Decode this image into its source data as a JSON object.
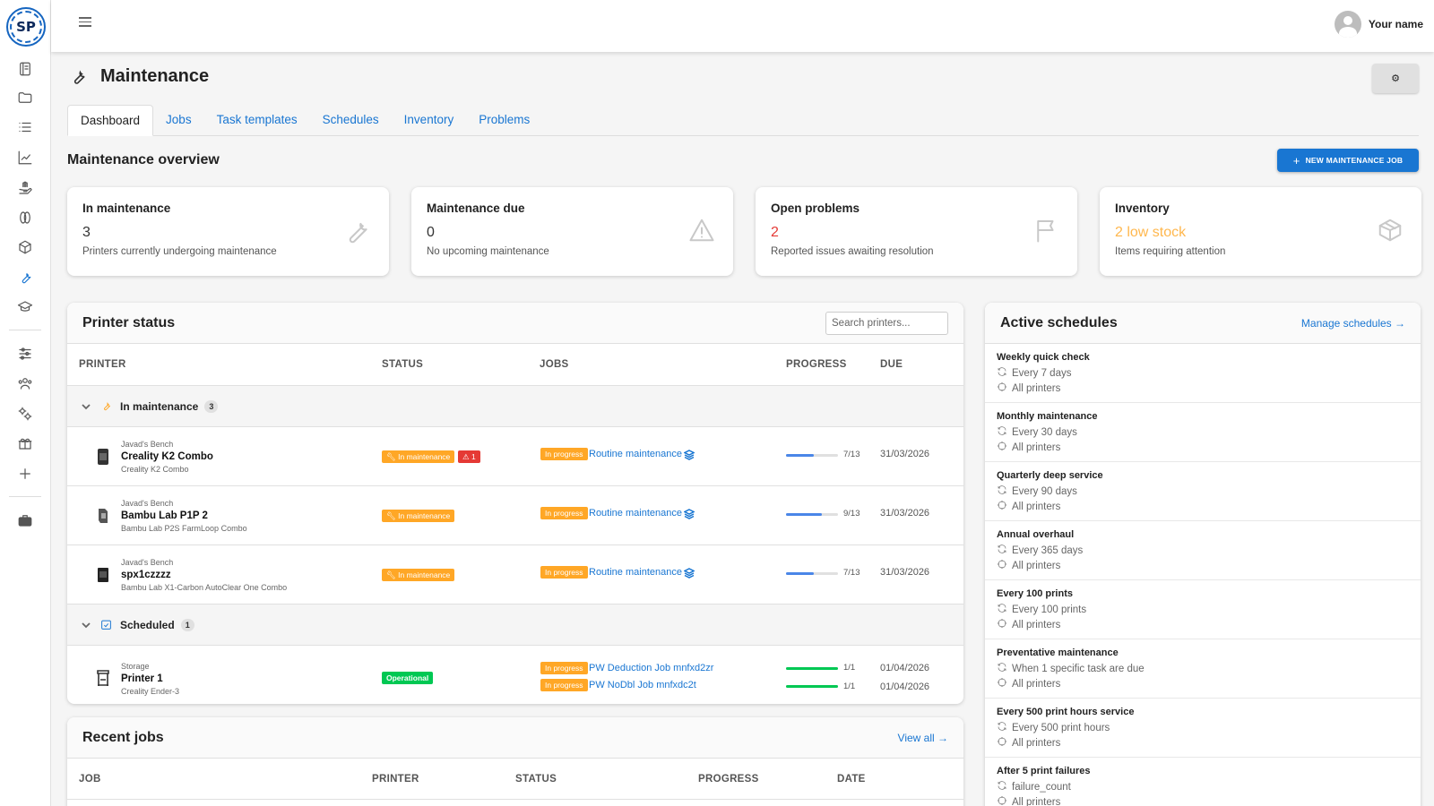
{
  "app": {
    "logo_text": "SP"
  },
  "topbar": {
    "username": "Your name"
  },
  "page": {
    "title": "Maintenance",
    "settings_icon": "gear-icon"
  },
  "tabs": [
    {
      "label": "Dashboard",
      "active": true
    },
    {
      "label": "Jobs"
    },
    {
      "label": "Task templates"
    },
    {
      "label": "Schedules"
    },
    {
      "label": "Inventory"
    },
    {
      "label": "Problems"
    }
  ],
  "overview": {
    "title": "Maintenance overview",
    "new_job_label": "NEW MAINTENANCE JOB",
    "cards": [
      {
        "title": "In maintenance",
        "value": "3",
        "sub": "Printers currently undergoing maintenance",
        "icon": "wrench-icon",
        "color": "#333333"
      },
      {
        "title": "Maintenance due",
        "value": "0",
        "sub": "No upcoming maintenance",
        "icon": "warning-icon",
        "color": "#333333"
      },
      {
        "title": "Open problems",
        "value": "2",
        "sub": "Reported issues awaiting resolution",
        "icon": "flag-icon",
        "color": "#e53935"
      },
      {
        "title": "Inventory",
        "value": "2 low stock",
        "sub": "Items requiring attention",
        "icon": "box-icon",
        "color": "#ffb74d"
      }
    ]
  },
  "printer_status": {
    "title": "Printer status",
    "search_placeholder": "Search printers...",
    "columns": [
      "PRINTER",
      "STATUS",
      "JOBS",
      "PROGRESS",
      "DUE"
    ],
    "groups": [
      {
        "label": "In maintenance",
        "count": "3",
        "icon": "wrench-icon"
      },
      {
        "label": "Scheduled",
        "count": "1",
        "icon": "calendar-check-icon"
      }
    ],
    "rows": [
      {
        "location": "Javad's Bench",
        "name": "Creality K2 Combo",
        "model": "Creality K2 Combo",
        "status": "In maintenance",
        "alert_count": "1",
        "job_status": "In progress",
        "job": "Routine maintenance",
        "progress": "7/13",
        "progress_value": 0.54,
        "due": "31/03/2026"
      },
      {
        "location": "Javad's Bench",
        "name": "Bambu Lab P1P 2",
        "model": "Bambu Lab P2S FarmLoop Combo",
        "status": "In maintenance",
        "job_status": "In progress",
        "job": "Routine maintenance",
        "progress": "9/13",
        "progress_value": 0.69,
        "due": "31/03/2026"
      },
      {
        "location": "Javad's Bench",
        "name": "spx1czzzz",
        "model": "Bambu Lab X1-Carbon AutoClear One Combo",
        "status": "In maintenance",
        "job_status": "In progress",
        "job": "Routine maintenance",
        "progress": "7/13",
        "progress_value": 0.54,
        "due": "31/03/2026"
      },
      {
        "location": "Storage",
        "name": "Printer 1",
        "model": "Creality Ender-3",
        "status": "Operational",
        "jobs": [
          {
            "job_status": "In progress",
            "job": "PW Deduction Job mnfxd2zr",
            "progress": "1/1",
            "progress_value": 1.0,
            "due": "01/04/2026"
          },
          {
            "job_status": "In progress",
            "job": "PW NoDbl Job mnfxdc2t",
            "progress": "1/1",
            "progress_value": 1.0,
            "due": "01/04/2026"
          }
        ]
      }
    ]
  },
  "recent_jobs": {
    "title": "Recent jobs",
    "view_all": "View all →",
    "columns": [
      "JOB",
      "PRINTER",
      "STATUS",
      "PROGRESS",
      "DATE"
    ]
  },
  "schedules": {
    "title": "Active schedules",
    "manage": "Manage schedules →",
    "items": [
      {
        "title": "Weekly quick check",
        "interval": "Every 7 days",
        "scope": "All printers"
      },
      {
        "title": "Monthly maintenance",
        "interval": "Every 30 days",
        "scope": "All printers"
      },
      {
        "title": "Quarterly deep service",
        "interval": "Every 90 days",
        "scope": "All printers"
      },
      {
        "title": "Annual overhaul",
        "interval": "Every 365 days",
        "scope": "All printers"
      },
      {
        "title": "Every 100 prints",
        "interval": "Every 100 prints",
        "scope": "All printers"
      },
      {
        "title": "Preventative maintenance",
        "interval": "When 1 specific task are due",
        "scope": "All printers"
      },
      {
        "title": "Every 500 print hours service",
        "interval": "Every 500 print hours",
        "scope": "All printers"
      },
      {
        "title": "After 5 print failures",
        "interval": "failure_count",
        "scope": "All printers"
      }
    ]
  },
  "colors": {
    "accent": "#1976d2",
    "warning": "#ffa726",
    "danger": "#e53935",
    "success": "#00c853"
  }
}
